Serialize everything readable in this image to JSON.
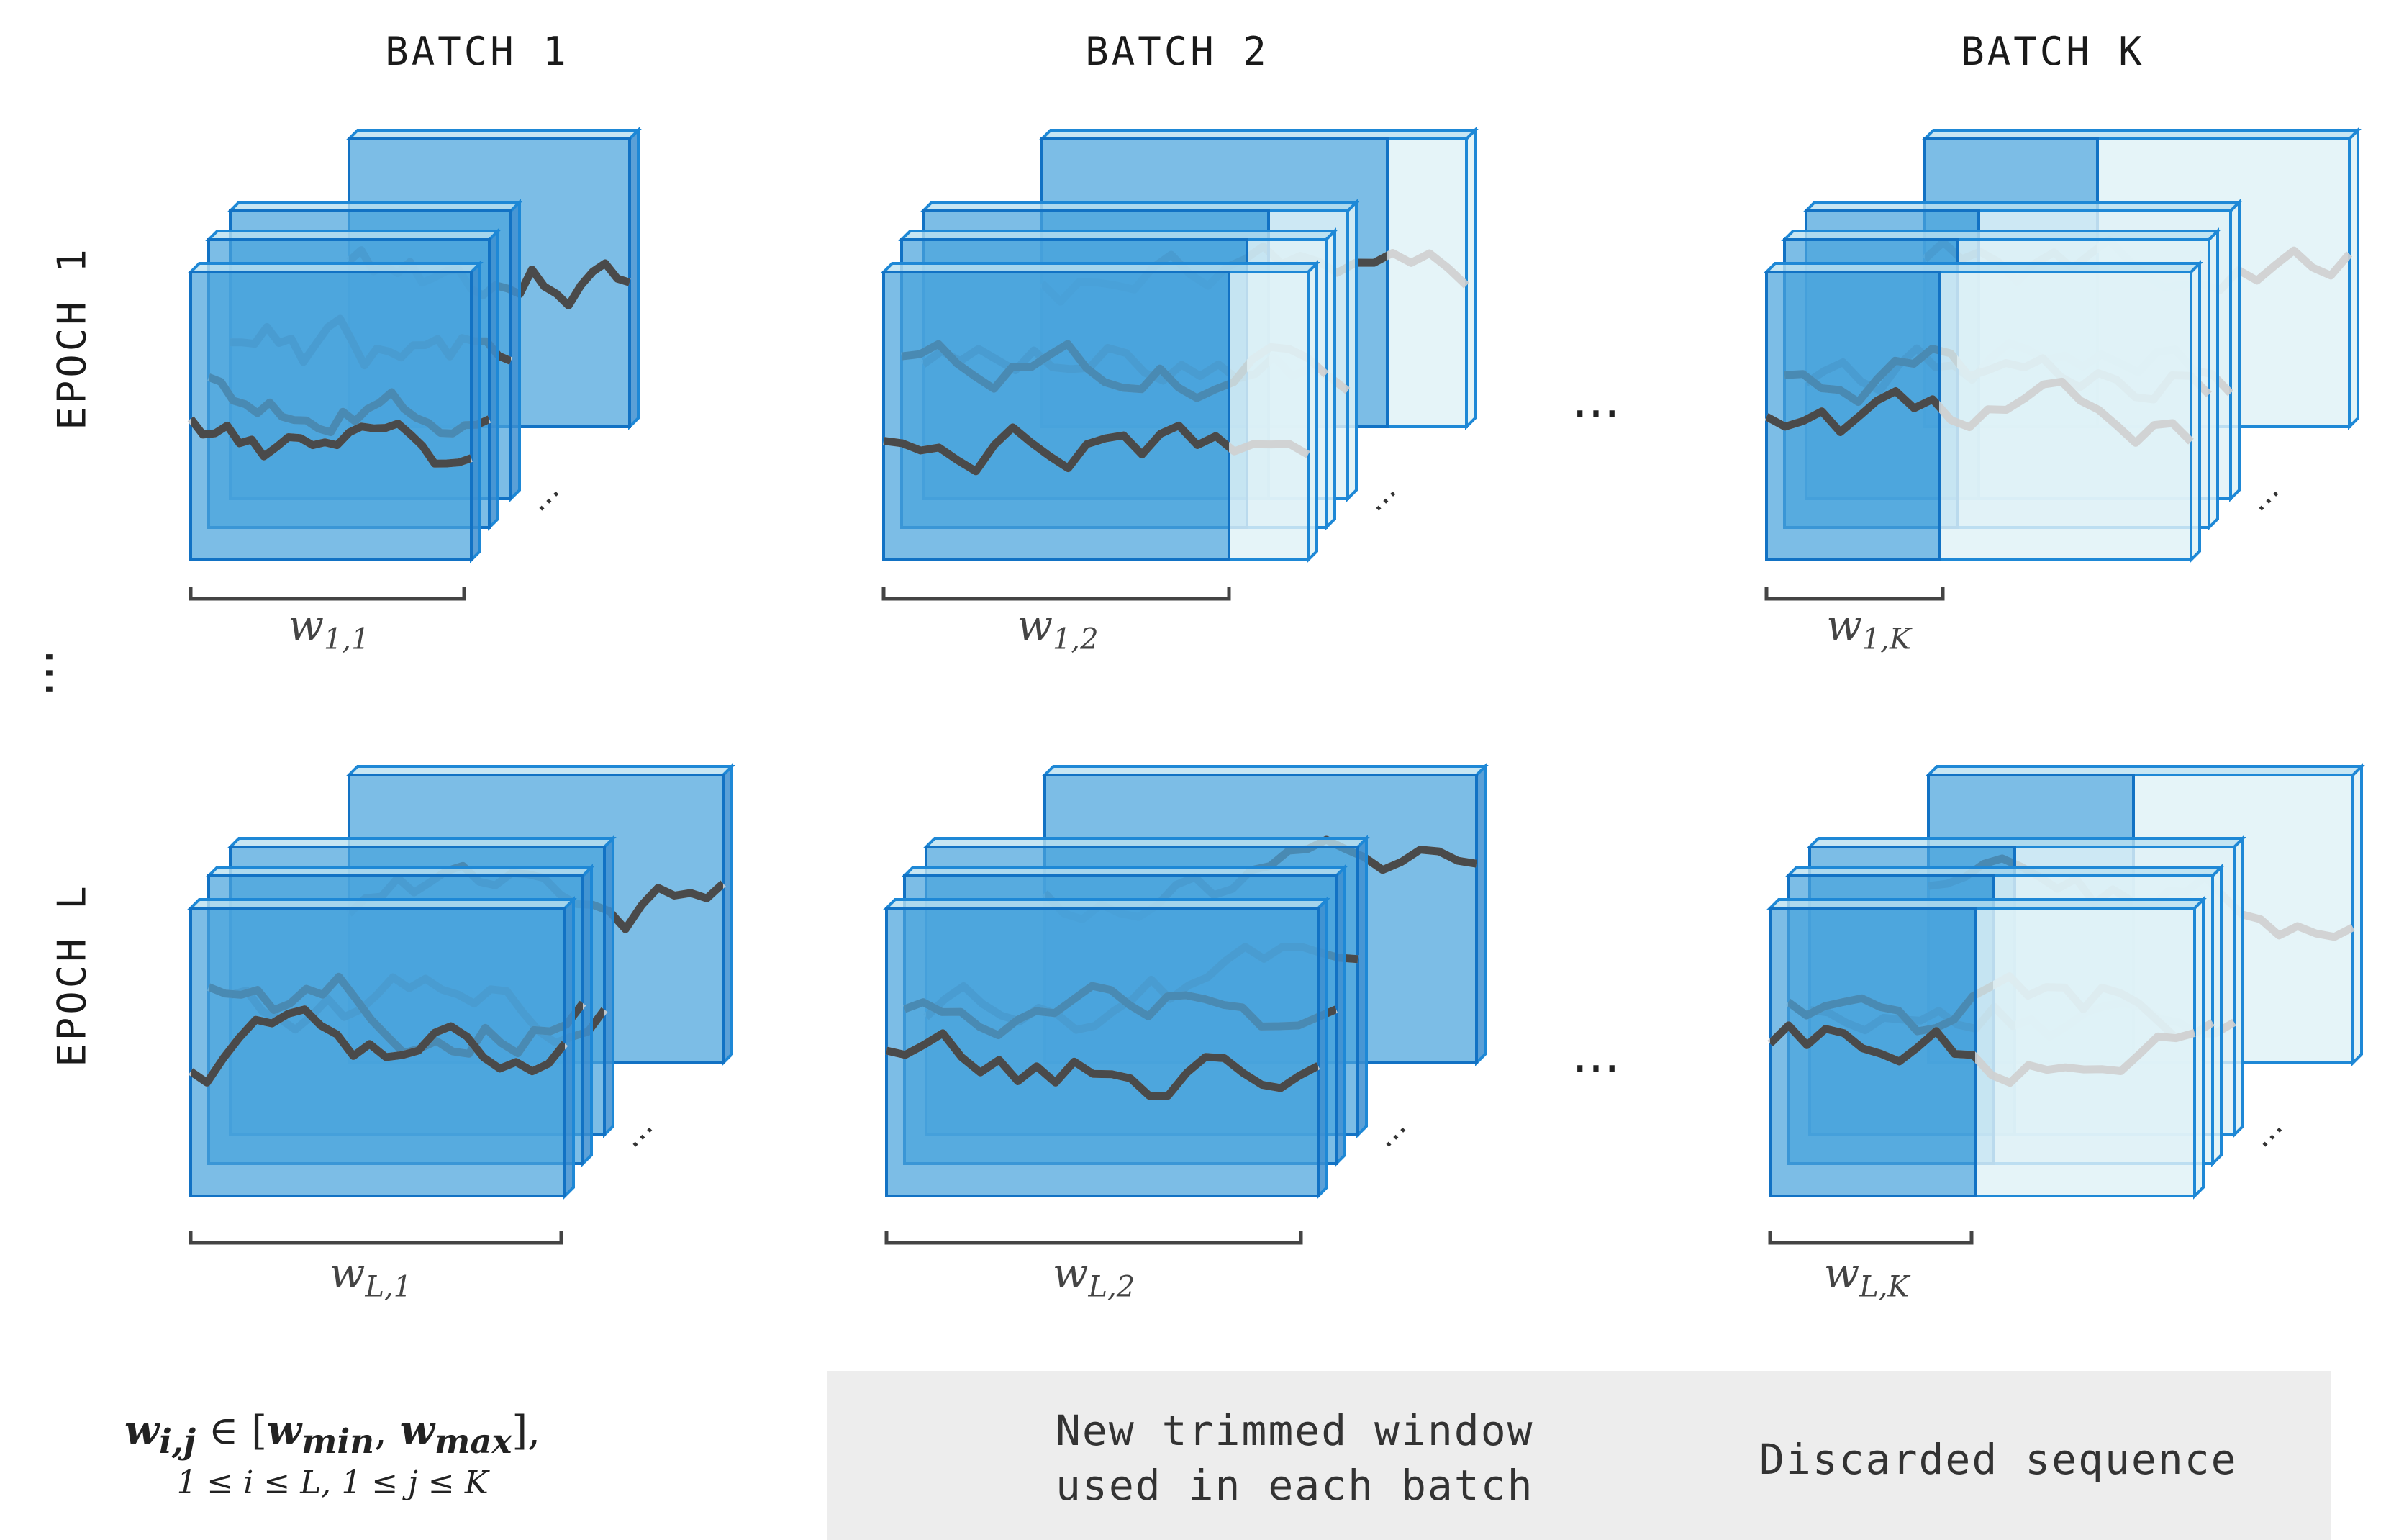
{
  "batches": [
    "BATCH 1",
    "BATCH 2",
    "BATCH K"
  ],
  "epochs": [
    "EPOCH 1",
    "EPOCH L"
  ],
  "window_labels": {
    "e1": [
      {
        "base": "w",
        "sub": "1,1"
      },
      {
        "base": "w",
        "sub": "1,2"
      },
      {
        "base": "w",
        "sub": "1,K"
      }
    ],
    "eL": [
      {
        "base": "w",
        "sub": "L,1"
      },
      {
        "base": "w",
        "sub": "L,2"
      },
      {
        "base": "w",
        "sub": "L,K"
      }
    ]
  },
  "ellipsis": "...",
  "legend": {
    "new_window": "New trimmed window used in each batch",
    "new_window_line1": "New trimmed window",
    "new_window_line2": "used in each batch",
    "discarded": "Discarded sequence"
  },
  "formula": {
    "line1": "w_i,j ∈ [w_min, w_max],",
    "line1_w": "w",
    "line1_sub": "i,j",
    "line1_in": " ∈ [",
    "line1_wmin": "w",
    "line1_wmin_sub": "min",
    "line1_comma": ", ",
    "line1_wmax": "w",
    "line1_wmax_sub": "max",
    "line1_end": "],",
    "line2": "1 ≤ i ≤ L, 1 ≤ j ≤ K"
  },
  "colors": {
    "new_window_fill": "#4aa3dc",
    "new_window_edge": "#1272c4",
    "discarded_fill": "#dff2f6",
    "discarded_edge": "#1e88d6",
    "series_dark": "#4a4a4a",
    "series_light": "#cfcfcf",
    "legend_bg": "#ededed"
  }
}
